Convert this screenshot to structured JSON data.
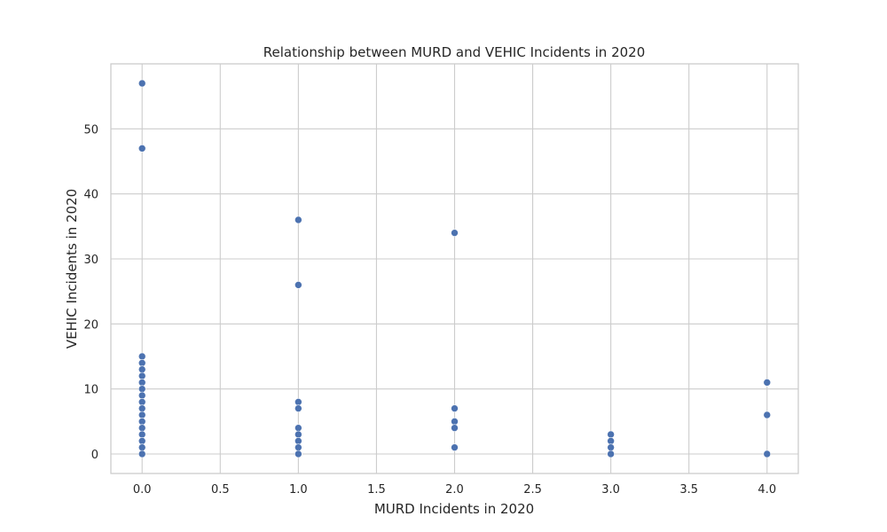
{
  "chart_data": {
    "type": "scatter",
    "title": "Relationship between MURD and VEHIC Incidents in 2020",
    "xlabel": "MURD Incidents in 2020",
    "ylabel": "VEHIC Incidents in 2020",
    "xlim": [
      -0.2,
      4.2
    ],
    "ylim": [
      -3,
      60
    ],
    "xticks": [
      0.0,
      0.5,
      1.0,
      1.5,
      2.0,
      2.5,
      3.0,
      3.5,
      4.0
    ],
    "xtick_labels": [
      "0.0",
      "0.5",
      "1.0",
      "1.5",
      "2.0",
      "2.5",
      "3.0",
      "3.5",
      "4.0"
    ],
    "yticks": [
      0,
      10,
      20,
      30,
      40,
      50
    ],
    "ytick_labels": [
      "0",
      "10",
      "20",
      "30",
      "40",
      "50"
    ],
    "grid": true,
    "color": "#4c72b0",
    "points": [
      {
        "x": 0,
        "y": 57
      },
      {
        "x": 0,
        "y": 47
      },
      {
        "x": 0,
        "y": 15
      },
      {
        "x": 0,
        "y": 14
      },
      {
        "x": 0,
        "y": 13
      },
      {
        "x": 0,
        "y": 12
      },
      {
        "x": 0,
        "y": 11
      },
      {
        "x": 0,
        "y": 10
      },
      {
        "x": 0,
        "y": 9
      },
      {
        "x": 0,
        "y": 8
      },
      {
        "x": 0,
        "y": 7
      },
      {
        "x": 0,
        "y": 6
      },
      {
        "x": 0,
        "y": 5
      },
      {
        "x": 0,
        "y": 4
      },
      {
        "x": 0,
        "y": 3
      },
      {
        "x": 0,
        "y": 2
      },
      {
        "x": 0,
        "y": 1
      },
      {
        "x": 0,
        "y": 0
      },
      {
        "x": 1,
        "y": 36
      },
      {
        "x": 1,
        "y": 26
      },
      {
        "x": 1,
        "y": 8
      },
      {
        "x": 1,
        "y": 7
      },
      {
        "x": 1,
        "y": 4
      },
      {
        "x": 1,
        "y": 3
      },
      {
        "x": 1,
        "y": 2
      },
      {
        "x": 1,
        "y": 1
      },
      {
        "x": 1,
        "y": 0
      },
      {
        "x": 2,
        "y": 34
      },
      {
        "x": 2,
        "y": 7
      },
      {
        "x": 2,
        "y": 5
      },
      {
        "x": 2,
        "y": 4
      },
      {
        "x": 2,
        "y": 1
      },
      {
        "x": 3,
        "y": 3
      },
      {
        "x": 3,
        "y": 2
      },
      {
        "x": 3,
        "y": 1
      },
      {
        "x": 3,
        "y": 0
      },
      {
        "x": 4,
        "y": 11
      },
      {
        "x": 4,
        "y": 6
      },
      {
        "x": 4,
        "y": 0
      }
    ]
  }
}
